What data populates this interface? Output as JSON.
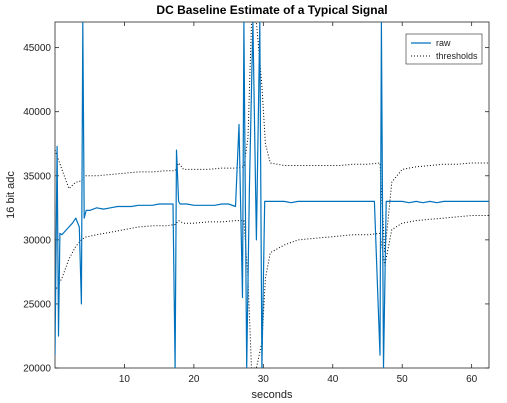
{
  "chart_data": {
    "type": "line",
    "title": "DC Baseline Estimate of a Typical Signal",
    "xlabel": "seconds",
    "ylabel": "16 bit adc",
    "xlim": [
      0,
      62.5
    ],
    "ylim": [
      20000,
      47000
    ],
    "xticks": [
      10,
      20,
      30,
      40,
      50,
      60
    ],
    "yticks": [
      20000,
      25000,
      30000,
      35000,
      40000,
      45000
    ],
    "xtick_labels": [
      "10",
      "20",
      "30",
      "40",
      "50",
      "60"
    ],
    "ytick_labels": [
      "20000",
      "25000",
      "30000",
      "35000",
      "40000",
      "45000"
    ],
    "grid": false,
    "legend_position": "top-right",
    "colors": {
      "raw": "#0072BD",
      "thresholds": "#000000"
    },
    "series": [
      {
        "name": "raw",
        "style": "solid",
        "x": [
          0,
          0.3,
          0.5,
          0.7,
          1.0,
          1.5,
          2.0,
          2.5,
          3.0,
          3.5,
          3.8,
          4.0,
          4.2,
          4.5,
          5.0,
          6.0,
          7.0,
          8.0,
          9.0,
          10.0,
          11.0,
          12.0,
          13.0,
          14.0,
          15.0,
          16.0,
          17.0,
          17.3,
          17.5,
          17.8,
          18.0,
          19.0,
          20.0,
          21.0,
          22.0,
          23.0,
          24.0,
          25.0,
          26.0,
          26.5,
          27.0,
          27.2,
          27.6,
          28.0,
          28.5,
          29.0,
          29.5,
          29.8,
          30.2,
          31.0,
          32.0,
          33.0,
          34.0,
          35.0,
          36.0,
          37.0,
          38.0,
          39.0,
          40.0,
          41.0,
          42.0,
          43.0,
          44.0,
          45.0,
          46.0,
          46.8,
          47.0,
          47.3,
          47.7,
          48.0,
          49.0,
          50.0,
          51.0,
          52.0,
          53.0,
          54.0,
          55.0,
          56.0,
          57.0,
          58.0,
          59.0,
          60.0,
          61.0,
          62.0,
          62.5
        ],
        "y": [
          21000,
          37300,
          22500,
          30500,
          30400,
          30700,
          31000,
          31300,
          31700,
          31000,
          25000,
          47000,
          31700,
          32300,
          32300,
          32500,
          32400,
          32500,
          32600,
          32600,
          32600,
          32700,
          32700,
          32700,
          32800,
          32800,
          32800,
          20000,
          37000,
          33000,
          32800,
          32800,
          32700,
          32700,
          32700,
          32700,
          32800,
          32800,
          32600,
          39000,
          25500,
          47000,
          20000,
          34000,
          47000,
          30000,
          47000,
          20000,
          33000,
          33000,
          33000,
          33000,
          32900,
          33000,
          33000,
          33000,
          33000,
          33000,
          33000,
          33000,
          33000,
          33000,
          33000,
          33000,
          33000,
          21000,
          47000,
          20000,
          33000,
          33000,
          33000,
          33000,
          32900,
          33000,
          32900,
          33000,
          32900,
          33000,
          33000,
          33000,
          33000,
          33000,
          33000,
          33000,
          33000
        ]
      },
      {
        "name": "thresholds",
        "style": "dotted",
        "x": [
          0,
          1,
          2,
          3,
          3.8,
          4.3,
          6,
          8,
          10,
          12,
          14,
          16,
          17.3,
          17.8,
          18.5,
          20,
          22,
          24,
          26,
          27.2,
          27.8,
          28.3,
          29,
          29.8,
          30.3,
          31,
          33,
          35,
          37,
          39,
          41,
          43,
          45,
          46.8,
          47.5,
          48.5,
          50,
          52,
          54,
          56,
          58,
          60,
          62.5
        ],
        "upper": [
          37000,
          35500,
          34000,
          34500,
          34600,
          35000,
          35000,
          35100,
          35200,
          35300,
          35300,
          35400,
          35400,
          36000,
          35500,
          35500,
          35500,
          35600,
          35600,
          35700,
          38000,
          47000,
          47000,
          42000,
          37500,
          36000,
          35800,
          35800,
          35800,
          35800,
          35800,
          35900,
          35900,
          36000,
          29000,
          34500,
          35500,
          35700,
          35800,
          35900,
          35900,
          36000,
          36000
        ],
        "lower": [
          26000,
          27000,
          28500,
          29500,
          30000,
          30200,
          30400,
          30600,
          30800,
          31000,
          31100,
          31100,
          31200,
          31500,
          31300,
          31300,
          31400,
          31400,
          31500,
          31500,
          27000,
          20000,
          20000,
          22000,
          27000,
          29000,
          29600,
          30000,
          30100,
          30200,
          30300,
          30400,
          30400,
          30500,
          28000,
          30800,
          31300,
          31500,
          31600,
          31700,
          31800,
          31900,
          31900
        ]
      }
    ]
  }
}
